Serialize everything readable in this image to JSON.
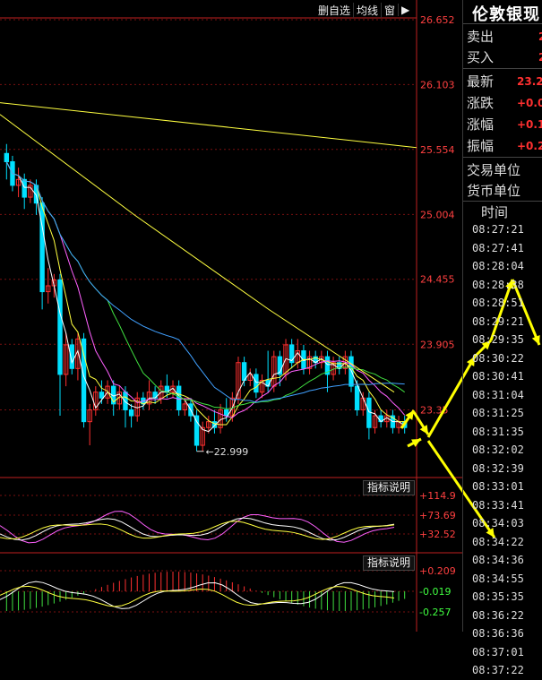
{
  "toolbar": {
    "items": [
      "删自选",
      "均线",
      "窗",
      "▶"
    ]
  },
  "price_axis": {
    "ticks": [
      "26.652",
      "26.103",
      "25.554",
      "25.004",
      "24.455",
      "23.905",
      "23.35"
    ]
  },
  "low_marker": "22.999",
  "indicator1": {
    "button": "指标说明",
    "ticks": [
      "+114.9",
      "+73.69",
      "+32.52"
    ]
  },
  "indicator2": {
    "button": "指标说明",
    "ticks": [
      "+0.209",
      "-0.019",
      "-0.257"
    ]
  },
  "panel": {
    "title": "伦敦银现",
    "rows": [
      {
        "label": "卖出",
        "value": "2"
      },
      {
        "label": "买入",
        "value": "2"
      },
      {
        "label": "最新",
        "value": "23.2"
      },
      {
        "label": "涨跌",
        "value": "+0.0"
      },
      {
        "label": "涨幅",
        "value": "+0.1"
      },
      {
        "label": "振幅",
        "value": "+0.2"
      },
      {
        "label": "交易单位",
        "value": ""
      },
      {
        "label": "货币单位",
        "value": ""
      }
    ],
    "time_header": "时间",
    "times": [
      "08:27:21",
      "08:27:41",
      "08:28:04",
      "08:28:38",
      "08:28:51",
      "08:29:21",
      "08:29:35",
      "08:30:22",
      "08:30:41",
      "08:31:04",
      "08:31:25",
      "08:31:35",
      "08:32:02",
      "08:32:39",
      "08:33:01",
      "08:33:41",
      "08:34:03",
      "08:34:22",
      "08:34:36",
      "08:34:55",
      "08:35:35",
      "08:36:22",
      "08:36:36",
      "08:37:01",
      "08:37:22"
    ]
  },
  "colors": {
    "up": "#ff3030",
    "down": "#00e0ff",
    "ma_white": "#ffffff",
    "ma_yellow": "#ffff40",
    "ma_magenta": "#ff60ff",
    "ma_green": "#40e040",
    "ma_cyan": "#40a0ff",
    "annotation": "#ffff00"
  },
  "chart_data": {
    "type": "candlestick",
    "y_range": [
      22.8,
      26.652
    ],
    "candles": [
      [
        25.52,
        25.45,
        25.6,
        25.3
      ],
      [
        25.45,
        25.25,
        25.5,
        25.2
      ],
      [
        25.25,
        25.3,
        25.4,
        25.15
      ],
      [
        25.3,
        25.15,
        25.35,
        25.05
      ],
      [
        25.15,
        25.25,
        25.3,
        25.1
      ],
      [
        25.25,
        25.1,
        25.3,
        25.0
      ],
      [
        25.1,
        24.35,
        25.15,
        24.2
      ],
      [
        24.35,
        24.4,
        24.55,
        24.25
      ],
      [
        24.4,
        24.45,
        24.5,
        24.3
      ],
      [
        24.45,
        23.65,
        24.5,
        23.3
      ],
      [
        23.65,
        23.9,
        24.0,
        23.55
      ],
      [
        23.9,
        23.7,
        23.95,
        23.65
      ],
      [
        23.7,
        23.95,
        24.0,
        23.6
      ],
      [
        23.95,
        23.25,
        24.0,
        23.2
      ],
      [
        23.25,
        23.35,
        23.4,
        23.05
      ],
      [
        23.35,
        23.5,
        23.55,
        23.3
      ],
      [
        23.5,
        23.45,
        23.6,
        23.4
      ],
      [
        23.45,
        23.55,
        23.6,
        23.4
      ],
      [
        23.55,
        23.4,
        23.6,
        23.3
      ],
      [
        23.4,
        23.5,
        23.55,
        23.35
      ],
      [
        23.5,
        23.35,
        23.55,
        23.2
      ],
      [
        23.35,
        23.3,
        23.4,
        23.2
      ],
      [
        23.3,
        23.45,
        23.5,
        23.25
      ],
      [
        23.45,
        23.4,
        23.5,
        23.35
      ],
      [
        23.4,
        23.5,
        23.6,
        23.35
      ],
      [
        23.5,
        23.45,
        23.55,
        23.4
      ],
      [
        23.45,
        23.55,
        23.6,
        23.4
      ],
      [
        23.55,
        23.5,
        23.65,
        23.45
      ],
      [
        23.5,
        23.55,
        23.6,
        23.45
      ],
      [
        23.55,
        23.35,
        23.6,
        23.3
      ],
      [
        23.35,
        23.4,
        23.45,
        23.3
      ],
      [
        23.4,
        23.3,
        23.45,
        23.25
      ],
      [
        23.3,
        23.05,
        23.35,
        23.0
      ],
      [
        23.05,
        23.2,
        23.25,
        23.0
      ],
      [
        23.2,
        23.25,
        23.3,
        23.15
      ],
      [
        23.25,
        23.2,
        23.35,
        23.15
      ],
      [
        23.2,
        23.35,
        23.4,
        23.15
      ],
      [
        23.35,
        23.3,
        23.45,
        23.25
      ],
      [
        23.3,
        23.45,
        23.5,
        23.25
      ],
      [
        23.45,
        23.75,
        23.8,
        23.4
      ],
      [
        23.75,
        23.6,
        23.8,
        23.55
      ],
      [
        23.6,
        23.65,
        23.7,
        23.55
      ],
      [
        23.65,
        23.5,
        23.7,
        23.45
      ],
      [
        23.5,
        23.6,
        23.65,
        23.45
      ],
      [
        23.6,
        23.55,
        23.85,
        23.5
      ],
      [
        23.55,
        23.8,
        23.85,
        23.5
      ],
      [
        23.8,
        23.65,
        23.85,
        23.55
      ],
      [
        23.65,
        23.9,
        23.95,
        23.6
      ],
      [
        23.9,
        23.75,
        23.95,
        23.7
      ],
      [
        23.75,
        23.85,
        23.95,
        23.7
      ],
      [
        23.85,
        23.7,
        23.9,
        23.65
      ],
      [
        23.7,
        23.8,
        23.85,
        23.65
      ],
      [
        23.8,
        23.75,
        23.85,
        23.7
      ],
      [
        23.75,
        23.8,
        23.85,
        23.7
      ],
      [
        23.8,
        23.65,
        23.85,
        23.5
      ],
      [
        23.65,
        23.75,
        23.8,
        23.6
      ],
      [
        23.75,
        23.7,
        23.8,
        23.65
      ],
      [
        23.7,
        23.8,
        23.85,
        23.65
      ],
      [
        23.8,
        23.55,
        23.85,
        23.5
      ],
      [
        23.55,
        23.35,
        23.6,
        23.3
      ],
      [
        23.35,
        23.45,
        23.5,
        23.3
      ],
      [
        23.45,
        23.2,
        23.5,
        23.1
      ],
      [
        23.2,
        23.3,
        23.35,
        23.15
      ],
      [
        23.3,
        23.25,
        23.35,
        23.2
      ],
      [
        23.25,
        23.3,
        23.35,
        23.2
      ],
      [
        23.3,
        23.2,
        23.35,
        23.15
      ],
      [
        23.2,
        23.25,
        23.3,
        23.15
      ],
      [
        23.25,
        23.2,
        23.3,
        23.15
      ]
    ],
    "ma_trend_line": [
      [
        0,
        25.95
      ],
      [
        465,
        25.57
      ]
    ],
    "annotation": "22.999"
  }
}
